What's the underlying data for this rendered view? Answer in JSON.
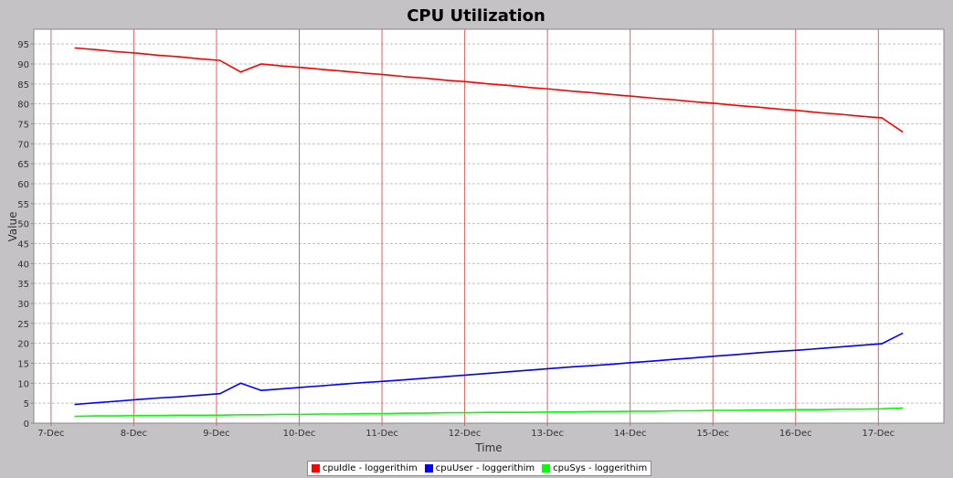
{
  "chart_data": {
    "type": "line",
    "title": "CPU Utilization",
    "xlabel": "Time",
    "ylabel": "Value",
    "ylim": [
      0,
      98.7
    ],
    "xlim": [
      "Dec 6 19:00",
      "Dec 17 19:00"
    ],
    "y_ticks": [
      "0",
      "5",
      "10",
      "15",
      "20",
      "25",
      "30",
      "35",
      "40",
      "45",
      "50",
      "55",
      "60",
      "65",
      "70",
      "75",
      "80",
      "85",
      "90",
      "95"
    ],
    "x_ticks": [
      "7-Dec",
      "8-Dec",
      "9-Dec",
      "10-Dec",
      "11-Dec",
      "12-Dec",
      "13-Dec",
      "14-Dec",
      "15-Dec",
      "16-Dec",
      "17-Dec"
    ],
    "grid": {
      "horizontal": "dashed light gray",
      "vertical": "red"
    },
    "legend_position": "bottom",
    "x": [
      "Dec 7 07:00",
      "Dec 7 13:00",
      "Dec 7 19:00",
      "Dec 8 01:00",
      "Dec 8 07:00",
      "Dec 8 13:00",
      "Dec 8 19:00",
      "Dec 9 01:00",
      "Dec 9 07:00",
      "Dec 9 13:00",
      "Dec 9 19:00",
      "Dec 10 01:00",
      "Dec 10 07:00",
      "Dec 10 13:00",
      "Dec 10 19:00",
      "Dec 11 01:00",
      "Dec 11 07:00",
      "Dec 11 13:00",
      "Dec 11 19:00",
      "Dec 12 01:00",
      "Dec 12 07:00",
      "Dec 12 13:00",
      "Dec 12 19:00",
      "Dec 13 01:00",
      "Dec 13 07:00",
      "Dec 13 13:00",
      "Dec 13 19:00",
      "Dec 14 01:00",
      "Dec 14 07:00",
      "Dec 14 13:00",
      "Dec 14 19:00",
      "Dec 15 01:00",
      "Dec 15 07:00",
      "Dec 15 13:00",
      "Dec 15 19:00",
      "Dec 16 01:00",
      "Dec 16 07:00",
      "Dec 16 13:00",
      "Dec 16 19:00",
      "Dec 17 01:00",
      "Dec 17 07:00"
    ],
    "series": [
      {
        "name": "cpuIdle - loggerithim",
        "color": "#ff0000",
        "values": [
          94.0,
          93.6,
          93.1,
          92.7,
          92.2,
          91.8,
          91.3,
          90.9,
          88.0,
          90.0,
          89.5,
          89.1,
          88.6,
          88.2,
          87.7,
          87.3,
          86.8,
          86.4,
          85.9,
          85.5,
          85.0,
          84.6,
          84.1,
          83.7,
          83.2,
          82.8,
          82.3,
          81.9,
          81.4,
          81.0,
          80.5,
          80.1,
          79.6,
          79.2,
          78.7,
          78.3,
          77.8,
          77.4,
          76.9,
          76.5,
          73.0
        ]
      },
      {
        "name": "cpuUser - loggerithim",
        "color": "#0000ff",
        "values": [
          4.7,
          5.1,
          5.5,
          5.9,
          6.3,
          6.6,
          7.0,
          7.4,
          10.0,
          8.2,
          8.6,
          9.0,
          9.4,
          9.8,
          10.2,
          10.5,
          10.9,
          11.3,
          11.7,
          12.1,
          12.5,
          12.9,
          13.3,
          13.7,
          14.1,
          14.4,
          14.8,
          15.2,
          15.6,
          16.0,
          16.4,
          16.8,
          17.2,
          17.6,
          18.0,
          18.3,
          18.7,
          19.1,
          19.5,
          19.9,
          22.5
        ]
      },
      {
        "name": "cpuSys - loggerithim",
        "color": "#00ff00",
        "values": [
          1.7,
          1.8,
          1.8,
          1.9,
          1.9,
          2.0,
          2.0,
          2.0,
          2.1,
          2.1,
          2.2,
          2.2,
          2.3,
          2.3,
          2.4,
          2.4,
          2.5,
          2.5,
          2.6,
          2.6,
          2.7,
          2.7,
          2.7,
          2.8,
          2.8,
          2.9,
          2.9,
          3.0,
          3.0,
          3.1,
          3.1,
          3.2,
          3.2,
          3.3,
          3.3,
          3.4,
          3.4,
          3.5,
          3.5,
          3.6,
          3.8
        ]
      }
    ]
  }
}
